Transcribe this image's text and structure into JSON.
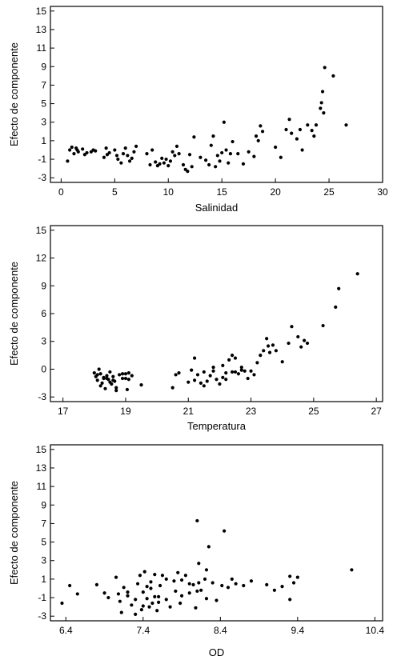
{
  "chart_data": [
    {
      "type": "scatter",
      "title": "",
      "xlabel": "Salinidad",
      "ylabel": "Efecto de componente",
      "xlim": [
        -1,
        30
      ],
      "ylim": [
        -3.5,
        15.5
      ],
      "xticks": [
        0,
        5,
        10,
        15,
        20,
        25,
        30
      ],
      "yticks": [
        -3,
        -1,
        1,
        3,
        5,
        7,
        9,
        11,
        13,
        15
      ],
      "grid": false,
      "series": [
        {
          "x": [
            0.6,
            0.8,
            1.0,
            1.2,
            1.4,
            1.5,
            1.6,
            2.0,
            2.2,
            2.4,
            2.8,
            3.0,
            3.2,
            4.0,
            4.2,
            4.3,
            4.5,
            5.0,
            5.2,
            5.3,
            5.6,
            5.8,
            6.0,
            6.2,
            6.4,
            6.6,
            6.8,
            7.0,
            8.0,
            8.3,
            8.5,
            8.8,
            9.0,
            9.2,
            9.4,
            9.6,
            9.8,
            10.0,
            10.2,
            10.4,
            10.6,
            10.8,
            11.0,
            11.4,
            11.6,
            11.8,
            12.0,
            12.2,
            12.4,
            13.0,
            13.5,
            13.8,
            14.0,
            14.2,
            14.4,
            14.6,
            14.8,
            15.0,
            15.2,
            15.4,
            15.6,
            15.8,
            16.0,
            16.5,
            17.0,
            17.5,
            18.0,
            18.2,
            18.4,
            18.6,
            18.8,
            20.0,
            20.5,
            21.0,
            21.3,
            21.5,
            22.0,
            22.3,
            22.5,
            23.0,
            23.4,
            23.6,
            23.8,
            24.2,
            24.3,
            24.4,
            24.5,
            24.6,
            25.4,
            26.6
          ],
          "y": [
            -1.2,
            0.0,
            0.3,
            -0.4,
            0.2,
            0.0,
            -0.2,
            0.1,
            -0.5,
            -0.3,
            -0.2,
            0.0,
            -0.1,
            -0.8,
            0.2,
            -0.5,
            -0.3,
            0.0,
            -0.6,
            -1.0,
            -1.4,
            -0.4,
            0.2,
            -0.6,
            -1.2,
            -0.9,
            -0.2,
            0.4,
            -0.4,
            -1.6,
            0.0,
            -1.3,
            -1.7,
            -1.5,
            -0.9,
            -1.4,
            -1.0,
            -1.7,
            -1.2,
            -0.2,
            -0.6,
            0.4,
            -0.4,
            -1.6,
            -2.1,
            -2.3,
            -0.5,
            -1.8,
            1.4,
            -0.8,
            -1.1,
            -1.6,
            0.5,
            1.5,
            -1.8,
            -0.6,
            -1.2,
            -0.3,
            3.0,
            0.0,
            -1.4,
            -0.4,
            0.9,
            -0.4,
            -1.5,
            -0.2,
            -0.7,
            1.5,
            1.0,
            2.6,
            2.0,
            0.3,
            -0.8,
            2.2,
            3.3,
            1.8,
            1.2,
            2.2,
            0.0,
            2.7,
            2.1,
            1.5,
            2.7,
            4.5,
            5.1,
            6.3,
            4.0,
            8.9,
            8.0,
            2.7
          ]
        }
      ]
    },
    {
      "type": "scatter",
      "title": "",
      "xlabel": "Temperatura",
      "ylabel": "Efecto de componente",
      "xlim": [
        16.6,
        27.2
      ],
      "ylim": [
        -3.5,
        15.5
      ],
      "xticks": [
        17,
        19,
        21,
        23,
        25,
        27
      ],
      "yticks": [
        -3,
        0,
        3,
        6,
        9,
        12,
        15
      ],
      "grid": false,
      "series": [
        {
          "x": [
            18.0,
            18.05,
            18.1,
            18.15,
            18.2,
            18.25,
            18.3,
            18.35,
            18.4,
            18.45,
            18.5,
            18.55,
            18.6,
            18.65,
            18.7,
            18.8,
            18.9,
            19.0,
            19.05,
            19.1,
            19.2,
            19.5,
            18.1,
            18.3,
            18.5,
            18.7,
            18.9,
            19.0,
            18.2,
            18.4,
            20.5,
            20.6,
            20.7,
            21.0,
            21.1,
            21.2,
            21.3,
            21.4,
            21.5,
            21.6,
            21.7,
            21.8,
            21.9,
            22.0,
            22.1,
            22.2,
            22.3,
            22.4,
            22.5,
            22.6,
            22.7,
            22.8,
            22.9,
            21.2,
            21.5,
            21.8,
            22.1,
            22.4,
            22.7,
            22.2,
            22.5,
            23.0,
            23.1,
            23.2,
            23.3,
            23.4,
            23.5,
            23.55,
            23.6,
            23.7,
            23.8,
            24.0,
            24.2,
            24.3,
            24.5,
            24.6,
            24.7,
            24.8,
            25.3,
            25.7,
            25.8,
            26.4,
            18.6,
            19.1
          ],
          "y": [
            -0.4,
            -0.8,
            -1.2,
            0.0,
            -0.5,
            -1.5,
            -0.9,
            -2.1,
            -0.7,
            -1.1,
            -0.3,
            -1.6,
            -0.8,
            -1.3,
            -2.0,
            -0.6,
            -1.0,
            -0.5,
            -2.2,
            -1.1,
            -0.7,
            -1.7,
            -0.6,
            -1.0,
            -1.4,
            -2.3,
            -0.5,
            -1.0,
            -1.8,
            -1.0,
            -2.0,
            -0.6,
            -0.4,
            -1.4,
            -0.1,
            -1.2,
            -0.6,
            -1.5,
            -0.3,
            -1.3,
            -0.7,
            -0.2,
            -1.1,
            -1.6,
            0.4,
            -0.4,
            1.0,
            -0.3,
            1.2,
            -0.5,
            0.2,
            -0.2,
            -1.0,
            1.2,
            -1.8,
            0.2,
            -0.9,
            1.5,
            -0.1,
            -1.1,
            -0.3,
            -0.2,
            -0.6,
            0.7,
            1.5,
            2.0,
            3.3,
            2.5,
            1.8,
            2.6,
            2.0,
            0.8,
            2.8,
            4.6,
            3.5,
            2.4,
            3.1,
            2.8,
            4.7,
            6.7,
            8.7,
            10.3,
            -1.2,
            -0.4
          ]
        }
      ]
    },
    {
      "type": "scatter",
      "title": "",
      "xlabel": "OD",
      "ylabel": "Efecto de componente",
      "xlim": [
        6.2,
        10.5
      ],
      "ylim": [
        -3.5,
        15.5
      ],
      "xticks": [
        6.4,
        7.4,
        8.4,
        9.4,
        10.4
      ],
      "xtick_labels": [
        "6.4",
        "7.4",
        "8.4",
        "9.4",
        "10.4"
      ],
      "yticks": [
        -3,
        -1,
        1,
        3,
        5,
        7,
        9,
        11,
        13,
        15
      ],
      "grid": false,
      "series": [
        {
          "x": [
            6.35,
            6.45,
            6.55,
            6.8,
            6.9,
            6.95,
            7.05,
            7.08,
            7.1,
            7.12,
            7.15,
            7.2,
            7.25,
            7.3,
            7.33,
            7.36,
            7.38,
            7.4,
            7.42,
            7.45,
            7.48,
            7.5,
            7.52,
            7.55,
            7.58,
            7.6,
            7.62,
            7.65,
            7.7,
            7.75,
            7.8,
            7.82,
            7.85,
            7.88,
            7.9,
            7.95,
            8.0,
            8.05,
            8.08,
            8.1,
            8.12,
            8.15,
            8.2,
            8.22,
            8.25,
            8.3,
            8.35,
            8.45,
            8.5,
            8.55,
            8.6,
            8.7,
            8.8,
            9.0,
            9.1,
            9.2,
            9.3,
            9.35,
            9.4,
            9.3,
            10.1,
            7.2,
            7.4,
            7.5,
            7.6,
            7.7,
            7.9,
            8.0,
            8.1,
            7.3,
            7.45,
            7.55,
            8.12,
            8.22,
            8.42
          ],
          "y": [
            -1.6,
            0.3,
            -0.6,
            0.4,
            -0.5,
            -1.0,
            1.2,
            -0.6,
            -1.4,
            -2.6,
            0.1,
            -0.8,
            -1.8,
            -1.2,
            0.5,
            1.4,
            -2.3,
            -0.4,
            1.8,
            -1.1,
            -2.0,
            0.7,
            -1.6,
            1.5,
            -2.4,
            -0.9,
            0.3,
            1.4,
            -1.2,
            -2.0,
            0.8,
            -0.3,
            1.7,
            -1.6,
            0.9,
            1.4,
            -0.5,
            0.4,
            -2.1,
            7.3,
            2.7,
            -0.2,
            1.0,
            2.0,
            4.5,
            0.6,
            -1.3,
            6.2,
            0.1,
            1.0,
            0.5,
            0.3,
            0.8,
            0.4,
            -0.2,
            0.2,
            1.3,
            0.6,
            1.2,
            -1.2,
            2.0,
            -0.4,
            -1.9,
            0.0,
            -1.5,
            1.0,
            -0.8,
            0.5,
            -0.3,
            -2.8,
            0.2,
            -0.9,
            0.6,
            -1.1,
            0.3
          ]
        }
      ]
    }
  ]
}
